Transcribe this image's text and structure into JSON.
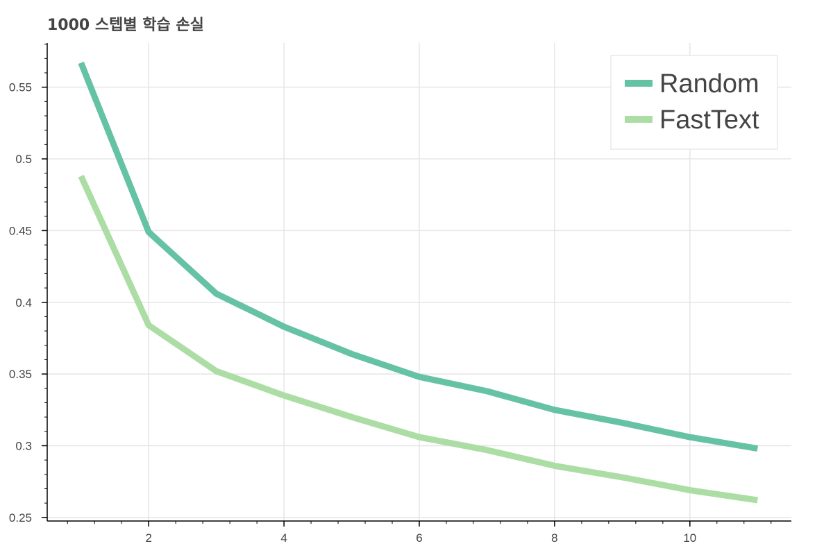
{
  "chart_data": {
    "type": "line",
    "title": "1000 스텝별 학습 손실",
    "xlabel": "",
    "ylabel": "",
    "xlim": [
      0.5,
      11.5
    ],
    "ylim": [
      0.2475,
      0.5808
    ],
    "x_ticks": [
      2,
      4,
      6,
      8,
      10
    ],
    "y_ticks": [
      0.25,
      0.3,
      0.35,
      0.4,
      0.45,
      0.5,
      0.55
    ],
    "grid": true,
    "legend_position": "top-right",
    "x": [
      1,
      2,
      3,
      4,
      5,
      6,
      7,
      8,
      9,
      10,
      11
    ],
    "series": [
      {
        "name": "Random",
        "color": "#66c2a5",
        "values": [
          0.567,
          0.449,
          0.406,
          0.383,
          0.364,
          0.348,
          0.338,
          0.325,
          0.316,
          0.306,
          0.298
        ]
      },
      {
        "name": "FastText",
        "color": "#abdda4",
        "values": [
          0.488,
          0.384,
          0.352,
          0.335,
          0.32,
          0.306,
          0.297,
          0.286,
          0.278,
          0.269,
          0.262
        ]
      }
    ]
  }
}
